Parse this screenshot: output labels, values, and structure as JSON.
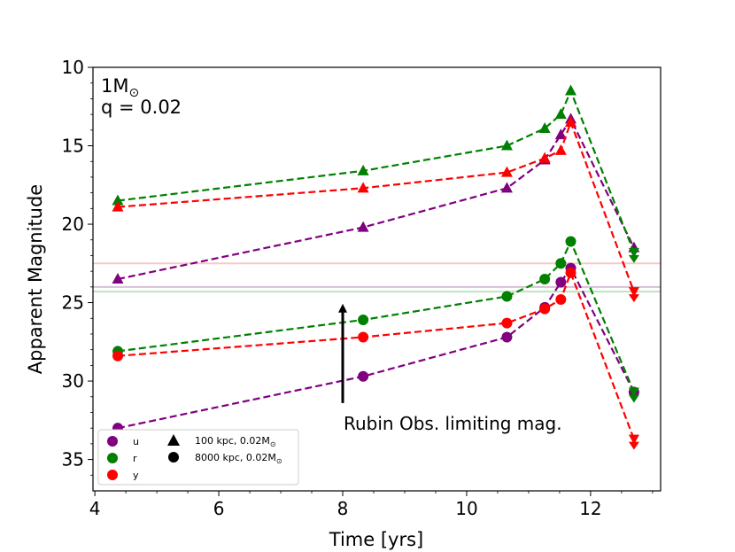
{
  "chart_data": {
    "type": "line",
    "title": "",
    "xlabel": "Time [yrs]",
    "ylabel": "Apparent Magnitude",
    "xlim": [
      3.97,
      13.13
    ],
    "ylim": [
      37,
      10
    ],
    "y_inverted": true,
    "grid": false,
    "x_ticks": [
      4,
      6,
      8,
      10,
      12
    ],
    "y_ticks": [
      10,
      15,
      20,
      25,
      30,
      35
    ],
    "annotation": {
      "line1": "1M",
      "sun_symbol": "⊙",
      "line2": "q = 0.02"
    },
    "arrow_label": "Rubin Obs. limiting mag.",
    "arrow": {
      "x": 8.0,
      "from_y": 31.4,
      "to_y": 24.9
    },
    "limiting_mags": [
      {
        "band": "u",
        "value": 24.0,
        "color": "#d8bfd8"
      },
      {
        "band": "r",
        "value": 24.3,
        "color": "#bfe3bf"
      },
      {
        "band": "y",
        "value": 22.5,
        "color": "#f8c8c8"
      }
    ],
    "x": [
      4.37,
      8.33,
      10.65,
      11.26,
      11.52,
      11.68,
      12.7
    ],
    "series": [
      {
        "name": "u 100 kpc",
        "band": "u",
        "marker": "triangle",
        "color": "#800080",
        "values": [
          23.5,
          20.2,
          17.7,
          15.9,
          14.3,
          13.3,
          21.5
        ],
        "last_upper_limit": false
      },
      {
        "name": "r 100 kpc",
        "band": "r",
        "marker": "triangle",
        "color": "#008000",
        "values": [
          18.5,
          16.6,
          15.0,
          13.9,
          13.0,
          11.5,
          21.8
        ],
        "last_upper_limit": true
      },
      {
        "name": "y 100 kpc",
        "band": "y",
        "marker": "triangle",
        "color": "#ff0000",
        "values": [
          18.9,
          17.7,
          16.7,
          15.8,
          15.3,
          13.5,
          24.3
        ],
        "last_upper_limit": true
      },
      {
        "name": "u 8000 kpc",
        "band": "u",
        "marker": "circle",
        "color": "#800080",
        "values": [
          33.0,
          29.7,
          27.2,
          25.3,
          23.7,
          22.8,
          30.7
        ],
        "last_upper_limit": false
      },
      {
        "name": "r 8000 kpc",
        "band": "r",
        "marker": "circle",
        "color": "#008000",
        "values": [
          28.1,
          26.1,
          24.6,
          23.5,
          22.5,
          21.1,
          30.7
        ],
        "last_upper_limit": true
      },
      {
        "name": "y 8000 kpc",
        "band": "y",
        "marker": "circle",
        "color": "#ff0000",
        "values": [
          28.4,
          27.2,
          26.3,
          25.4,
          24.8,
          23.1,
          33.7
        ],
        "last_upper_limit": true
      }
    ],
    "legend": {
      "placement": "lower-left",
      "bands": [
        {
          "label": "u",
          "color": "#800080"
        },
        {
          "label": "r",
          "color": "#008000"
        },
        {
          "label": "y",
          "color": "#ff0000"
        }
      ],
      "markers": [
        {
          "marker": "triangle",
          "label": "100 kpc, 0.02M",
          "sun_symbol": "⊙"
        },
        {
          "marker": "circle",
          "label": "8000 kpc, 0.02M",
          "sun_symbol": "⊙"
        }
      ]
    }
  }
}
